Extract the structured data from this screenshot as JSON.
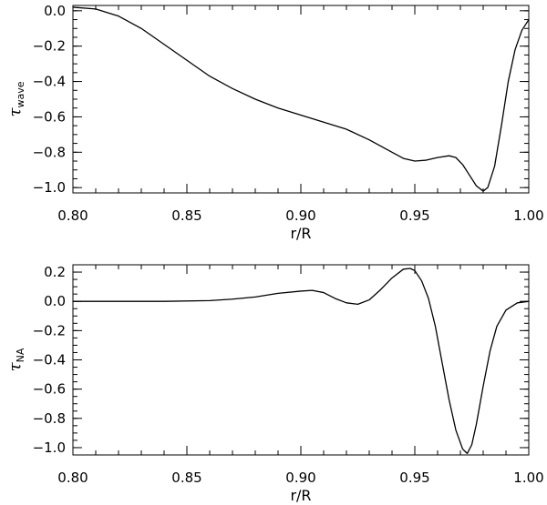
{
  "chart_data": [
    {
      "type": "line",
      "title": "",
      "xlabel": "r/R",
      "ylabel": {
        "symbol": "τ",
        "subscript": "wave"
      },
      "xlim": [
        0.8,
        1.0
      ],
      "ylim": [
        -1.03,
        0.03
      ],
      "x_ticks": [
        0.8,
        0.85,
        0.9,
        0.95,
        1.0
      ],
      "x_tick_labels": [
        "0.80",
        "0.85",
        "0.90",
        "0.95",
        "1.00"
      ],
      "x_minor_step": 0.01,
      "y_ticks": [
        0.0,
        -0.2,
        -0.4,
        -0.6,
        -0.8,
        -1.0
      ],
      "y_tick_labels": [
        "0.0",
        "−0.2",
        "−0.4",
        "−0.6",
        "−0.8",
        "−1.0"
      ],
      "y_minor_step": 0.05,
      "grid": false,
      "series": [
        {
          "color": "#000000",
          "x": [
            0.8,
            0.81,
            0.82,
            0.83,
            0.84,
            0.85,
            0.86,
            0.87,
            0.88,
            0.89,
            0.9,
            0.91,
            0.92,
            0.93,
            0.94,
            0.945,
            0.95,
            0.955,
            0.96,
            0.965,
            0.968,
            0.971,
            0.974,
            0.977,
            0.98,
            0.982,
            0.985,
            0.988,
            0.991,
            0.994,
            0.997,
            1.0
          ],
          "y": [
            0.02,
            0.01,
            -0.03,
            -0.1,
            -0.19,
            -0.28,
            -0.37,
            -0.44,
            -0.5,
            -0.55,
            -0.59,
            -0.63,
            -0.67,
            -0.73,
            -0.8,
            -0.835,
            -0.85,
            -0.845,
            -0.83,
            -0.82,
            -0.83,
            -0.87,
            -0.93,
            -0.99,
            -1.02,
            -1.0,
            -0.88,
            -0.65,
            -0.4,
            -0.22,
            -0.11,
            -0.05
          ]
        }
      ]
    },
    {
      "type": "line",
      "title": "",
      "xlabel": "r/R",
      "ylabel": {
        "symbol": "τ",
        "subscript": "NA"
      },
      "xlim": [
        0.8,
        1.0
      ],
      "ylim": [
        -1.05,
        0.25
      ],
      "x_ticks": [
        0.8,
        0.85,
        0.9,
        0.95,
        1.0
      ],
      "x_tick_labels": [
        "0.80",
        "0.85",
        "0.90",
        "0.95",
        "1.00"
      ],
      "x_minor_step": 0.01,
      "y_ticks": [
        0.2,
        0.0,
        -0.2,
        -0.4,
        -0.6,
        -0.8,
        -1.0
      ],
      "y_tick_labels": [
        "0.2",
        "0.0",
        "−0.2",
        "−0.4",
        "−0.6",
        "−0.8",
        "−1.0"
      ],
      "y_minor_step": 0.05,
      "grid": false,
      "series": [
        {
          "color": "#000000",
          "x": [
            0.8,
            0.82,
            0.84,
            0.86,
            0.87,
            0.88,
            0.89,
            0.9,
            0.905,
            0.91,
            0.915,
            0.92,
            0.925,
            0.93,
            0.935,
            0.94,
            0.945,
            0.948,
            0.95,
            0.953,
            0.956,
            0.959,
            0.962,
            0.965,
            0.968,
            0.971,
            0.973,
            0.975,
            0.977,
            0.98,
            0.983,
            0.986,
            0.99,
            0.995,
            1.0
          ],
          "y": [
            0.0,
            0.0,
            0.0,
            0.005,
            0.015,
            0.03,
            0.055,
            0.07,
            0.075,
            0.06,
            0.02,
            -0.01,
            -0.02,
            0.01,
            0.08,
            0.16,
            0.22,
            0.225,
            0.21,
            0.14,
            0.02,
            -0.17,
            -0.42,
            -0.67,
            -0.88,
            -1.01,
            -1.04,
            -0.98,
            -0.84,
            -0.58,
            -0.34,
            -0.17,
            -0.06,
            -0.01,
            0.0
          ]
        }
      ]
    }
  ]
}
